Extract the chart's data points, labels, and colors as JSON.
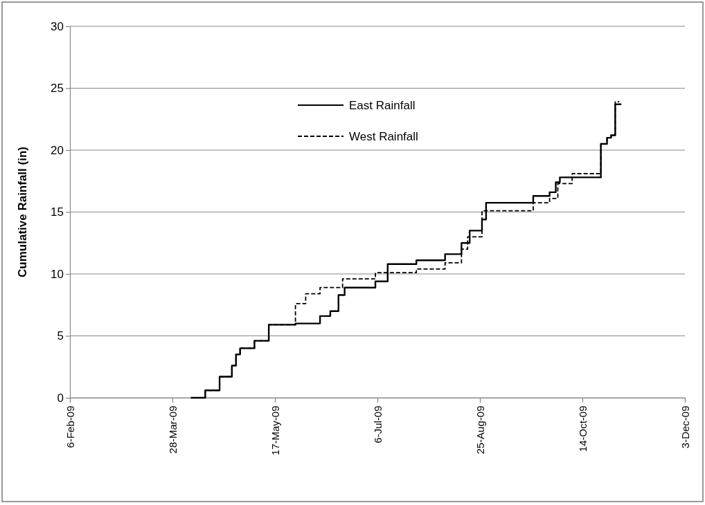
{
  "chart_data": {
    "type": "step",
    "ylabel": "Cumulative Rainfall (in)",
    "xlim": [
      "2009-02-06",
      "2009-12-03"
    ],
    "xticks": [
      {
        "value": "2009-02-06",
        "label": "6-Feb-09"
      },
      {
        "value": "2009-03-28",
        "label": "28-Mar-09"
      },
      {
        "value": "2009-05-17",
        "label": "17-May-09"
      },
      {
        "value": "2009-07-06",
        "label": "6-Jul-09"
      },
      {
        "value": "2009-08-25",
        "label": "25-Aug-09"
      },
      {
        "value": "2009-10-14",
        "label": "14-Oct-09"
      },
      {
        "value": "2009-12-03",
        "label": "3-Dec-09"
      }
    ],
    "ylim": [
      0,
      30
    ],
    "yticks": [
      0,
      5,
      10,
      15,
      20,
      25,
      30
    ],
    "grid": "y",
    "legend": "top",
    "series": [
      {
        "name": "East Rainfall",
        "color": "#000000",
        "line_style": "solid",
        "x": [
          "2009-04-06",
          "2009-04-13",
          "2009-04-20",
          "2009-04-26",
          "2009-04-28",
          "2009-04-30",
          "2009-05-07",
          "2009-05-14",
          "2009-05-27",
          "2009-06-08",
          "2009-06-13",
          "2009-06-17",
          "2009-06-20",
          "2009-07-05",
          "2009-07-11",
          "2009-07-25",
          "2009-08-08",
          "2009-08-16",
          "2009-08-20",
          "2009-08-26",
          "2009-08-28",
          "2009-09-20",
          "2009-09-28",
          "2009-10-01",
          "2009-10-03",
          "2009-10-23",
          "2009-10-26",
          "2009-10-28",
          "2009-10-30",
          "2009-11-02"
        ],
        "values": [
          0,
          0.6,
          1.7,
          2.6,
          3.5,
          4.0,
          4.6,
          5.9,
          6.0,
          6.6,
          7.0,
          8.3,
          8.9,
          9.4,
          10.8,
          11.1,
          11.6,
          12.5,
          13.5,
          14.4,
          15.75,
          16.3,
          16.6,
          17.4,
          17.8,
          20.5,
          21.0,
          21.2,
          23.7,
          23.7
        ]
      },
      {
        "name": "West Rainfall",
        "color": "#000000",
        "line_style": "dashed",
        "x": [
          "2009-04-06",
          "2009-04-13",
          "2009-04-20",
          "2009-04-26",
          "2009-04-28",
          "2009-04-30",
          "2009-05-07",
          "2009-05-14",
          "2009-05-27",
          "2009-06-01",
          "2009-06-08",
          "2009-06-19",
          "2009-07-05",
          "2009-07-25",
          "2009-08-08",
          "2009-08-16",
          "2009-08-19",
          "2009-08-26",
          "2009-09-20",
          "2009-09-28",
          "2009-10-02",
          "2009-10-09",
          "2009-10-23",
          "2009-10-26",
          "2009-10-28",
          "2009-10-30",
          "2009-11-01"
        ],
        "values": [
          0,
          0.6,
          1.7,
          2.6,
          3.5,
          4.0,
          4.6,
          5.9,
          7.6,
          8.4,
          8.9,
          9.6,
          10.1,
          10.4,
          10.9,
          12.0,
          13.0,
          15.1,
          15.75,
          16.1,
          17.3,
          18.1,
          20.5,
          21.0,
          21.2,
          23.9,
          23.9
        ]
      }
    ]
  }
}
